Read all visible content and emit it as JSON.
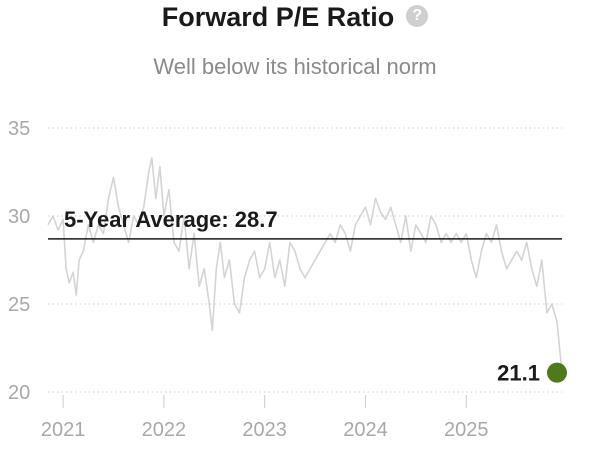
{
  "chart_data": {
    "type": "line",
    "title": "Forward P/E Ratio",
    "subtitle": "Well below its historical norm",
    "help_icon": "question-circle-icon",
    "x_tick_labels": [
      "2021",
      "2022",
      "2023",
      "2024",
      "2025"
    ],
    "x_ticks": [
      2021,
      2022,
      2023,
      2024,
      2025
    ],
    "xlim": [
      2020.85,
      2025.95
    ],
    "y_tick_labels": [
      "20",
      "25",
      "30",
      "35"
    ],
    "y_ticks": [
      20,
      25,
      30,
      35
    ],
    "ylim": [
      20,
      35
    ],
    "grid": "horizontal dotted",
    "series_color": "#d4d4d4",
    "average": {
      "label": "5-Year Average: 28.7",
      "value": 28.7,
      "color": "#1a1a1a"
    },
    "last_point": {
      "label": "21.1",
      "x": 2025.95,
      "value": 21.1,
      "color": "#4f7a1c"
    },
    "series": [
      {
        "x": [
          2020.85,
          2020.9,
          2020.95,
          2021.0,
          2021.03,
          2021.06,
          2021.1,
          2021.13,
          2021.16,
          2021.2,
          2021.25,
          2021.3,
          2021.35,
          2021.4,
          2021.45,
          2021.5,
          2021.55,
          2021.6,
          2021.65,
          2021.7,
          2021.75,
          2021.8,
          2021.85,
          2021.88,
          2021.92,
          2021.96,
          2022.0,
          2022.05,
          2022.1,
          2022.15,
          2022.2,
          2022.25,
          2022.3,
          2022.35,
          2022.4,
          2022.45,
          2022.48,
          2022.52,
          2022.56,
          2022.6,
          2022.65,
          2022.7,
          2022.75,
          2022.8,
          2022.85,
          2022.9,
          2022.95,
          2023.0,
          2023.05,
          2023.1,
          2023.15,
          2023.2,
          2023.25,
          2023.3,
          2023.35,
          2023.4,
          2023.45,
          2023.5,
          2023.55,
          2023.6,
          2023.65,
          2023.7,
          2023.75,
          2023.8,
          2023.85,
          2023.9,
          2023.95,
          2024.0,
          2024.05,
          2024.1,
          2024.15,
          2024.2,
          2024.25,
          2024.3,
          2024.35,
          2024.4,
          2024.45,
          2024.5,
          2024.55,
          2024.6,
          2024.65,
          2024.7,
          2024.75,
          2024.8,
          2024.85,
          2024.9,
          2024.95,
          2025.0,
          2025.05,
          2025.1,
          2025.15,
          2025.2,
          2025.25,
          2025.3,
          2025.35,
          2025.4,
          2025.45,
          2025.5,
          2025.55,
          2025.6,
          2025.65,
          2025.7,
          2025.75,
          2025.8,
          2025.85,
          2025.9
        ],
        "values": [
          29.5,
          30.0,
          29.2,
          29.8,
          27.0,
          26.2,
          26.8,
          25.5,
          27.5,
          28.0,
          29.5,
          28.5,
          29.5,
          29.0,
          31.0,
          32.2,
          30.5,
          29.5,
          28.5,
          30.0,
          29.5,
          30.5,
          32.5,
          33.3,
          31.0,
          32.8,
          30.0,
          31.5,
          28.5,
          28.0,
          30.0,
          27.0,
          29.0,
          26.0,
          27.0,
          25.0,
          23.5,
          27.0,
          28.5,
          26.5,
          27.5,
          25.0,
          24.5,
          26.5,
          27.5,
          28.0,
          26.5,
          27.0,
          28.5,
          26.5,
          27.5,
          26.0,
          28.5,
          28.0,
          27.0,
          26.5,
          27.0,
          27.5,
          28.0,
          28.5,
          29.0,
          28.5,
          29.5,
          29.0,
          28.0,
          29.5,
          30.0,
          30.5,
          29.5,
          31.0,
          30.2,
          29.8,
          30.5,
          29.5,
          28.5,
          30.0,
          28.0,
          29.5,
          29.0,
          28.5,
          30.0,
          29.5,
          28.5,
          29.0,
          28.5,
          29.0,
          28.5,
          29.0,
          27.5,
          26.5,
          28.0,
          29.0,
          28.5,
          29.5,
          28.0,
          27.0,
          27.5,
          28.0,
          27.5,
          28.5,
          27.0,
          26.0,
          27.5,
          24.5,
          25.0,
          24.0
        ]
      }
    ]
  }
}
